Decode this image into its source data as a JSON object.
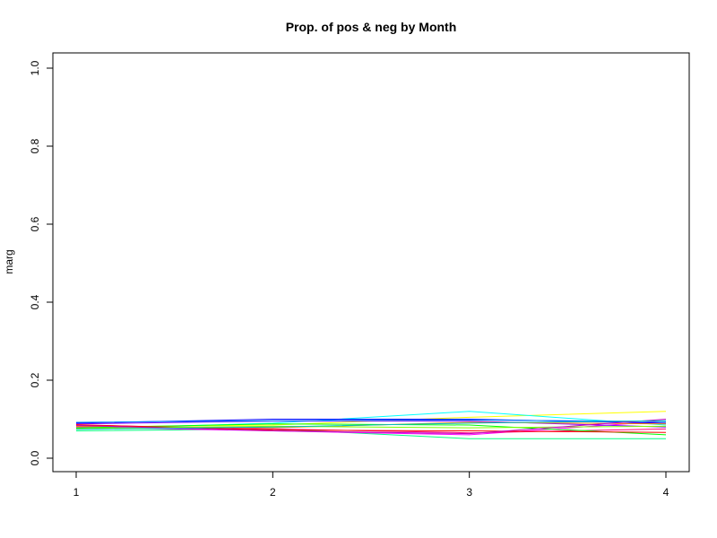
{
  "chart_data": {
    "type": "line",
    "title": "Prop. of pos & neg by Month",
    "xlabel": "",
    "ylabel": "marg",
    "xlim": [
      1,
      4
    ],
    "ylim": [
      0,
      1
    ],
    "x_ticks": [
      "1",
      "2",
      "3",
      "4"
    ],
    "y_ticks": [
      "0.0",
      "0.2",
      "0.4",
      "0.6",
      "0.8",
      "1.0"
    ],
    "x": [
      1,
      2,
      3,
      4
    ],
    "grid": false,
    "legend": "none",
    "series": [
      {
        "color": "#ffff00",
        "values": [
          0.08,
          0.085,
          0.105,
          0.12
        ]
      },
      {
        "color": "#00ffff",
        "values": [
          0.075,
          0.09,
          0.12,
          0.085
        ]
      },
      {
        "color": "#00ff80",
        "values": [
          0.07,
          0.075,
          0.05,
          0.05
        ]
      },
      {
        "color": "#ff00ff",
        "values": [
          0.08,
          0.07,
          0.06,
          0.095
        ]
      },
      {
        "color": "#ff0080",
        "values": [
          0.085,
          0.075,
          0.065,
          0.075
        ]
      },
      {
        "color": "#0000ff",
        "values": [
          0.09,
          0.1,
          0.1,
          0.09
        ]
      },
      {
        "color": "#8000ff",
        "values": [
          0.088,
          0.095,
          0.095,
          0.08
        ]
      },
      {
        "color": "#00ff00",
        "values": [
          0.078,
          0.088,
          0.085,
          0.06
        ]
      },
      {
        "color": "#ff8000",
        "values": [
          0.082,
          0.078,
          0.092,
          0.088
        ]
      },
      {
        "color": "#ff0000",
        "values": [
          0.086,
          0.072,
          0.07,
          0.066
        ]
      },
      {
        "color": "#0080ff",
        "values": [
          0.092,
          0.096,
          0.098,
          0.094
        ]
      },
      {
        "color": "#80ff00",
        "values": [
          0.076,
          0.082,
          0.078,
          0.082
        ]
      },
      {
        "color": "#c000c0",
        "values": [
          0.084,
          0.07,
          0.063,
          0.1
        ]
      },
      {
        "color": "#00c0c0",
        "values": [
          0.074,
          0.08,
          0.09,
          0.096
        ]
      }
    ]
  }
}
